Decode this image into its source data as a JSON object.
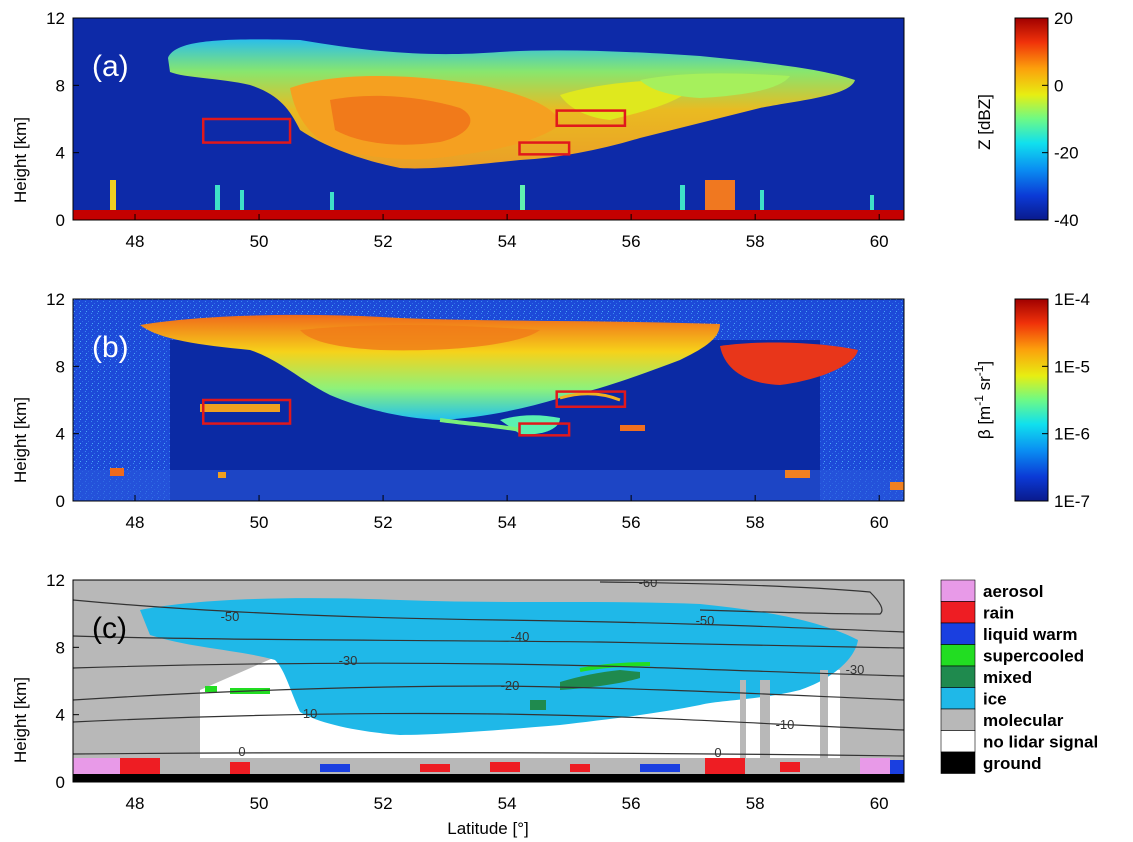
{
  "chart_data": [
    {
      "type": "heatmap",
      "panel_label": "(a)",
      "ylabel": "Height [km]",
      "xlim": [
        47,
        60.4
      ],
      "ylim": [
        0,
        12
      ],
      "xticks": [
        "48",
        "50",
        "52",
        "54",
        "56",
        "58",
        "60"
      ],
      "yticks": [
        "0",
        "4",
        "8",
        "12"
      ],
      "colorbar": {
        "label": "Z [dBZ]",
        "ticks": [
          "20",
          "0",
          "-20",
          "-40"
        ],
        "range": [
          -40,
          20
        ],
        "colormap": "jet"
      },
      "highlight_boxes": [
        {
          "lat": [
            49.1,
            50.5
          ],
          "height_km": [
            4.6,
            6.0
          ]
        },
        {
          "lat": [
            54.2,
            55.0
          ],
          "height_km": [
            3.9,
            4.6
          ]
        },
        {
          "lat": [
            54.8,
            55.9
          ],
          "height_km": [
            5.6,
            6.5
          ]
        }
      ],
      "box_color": "#e0181c"
    },
    {
      "type": "heatmap",
      "panel_label": "(b)",
      "ylabel": "Height [km]",
      "xlim": [
        47,
        60.4
      ],
      "ylim": [
        0,
        12
      ],
      "xticks": [
        "48",
        "50",
        "52",
        "54",
        "56",
        "58",
        "60"
      ],
      "yticks": [
        "0",
        "4",
        "8",
        "12"
      ],
      "colorbar": {
        "label_main": "β [m",
        "label_sup1": "-1",
        "label_mid": " sr",
        "label_sup2": "-1",
        "label_end": "]",
        "ticks": [
          "1E-4",
          "1E-5",
          "1E-6",
          "1E-7"
        ],
        "scale": "log",
        "colormap": "jet"
      },
      "highlight_boxes": [
        {
          "lat": [
            49.1,
            50.5
          ],
          "height_km": [
            4.6,
            6.0
          ]
        },
        {
          "lat": [
            54.2,
            55.0
          ],
          "height_km": [
            3.9,
            4.6
          ]
        },
        {
          "lat": [
            54.8,
            55.9
          ],
          "height_km": [
            5.6,
            6.5
          ]
        }
      ],
      "box_color": "#e0181c"
    },
    {
      "type": "heatmap",
      "panel_label": "(c)",
      "ylabel": "Height [km]",
      "xlabel": "Latitude [°]",
      "xlim": [
        47,
        60.4
      ],
      "ylim": [
        0,
        12
      ],
      "xticks": [
        "48",
        "50",
        "52",
        "54",
        "56",
        "58",
        "60"
      ],
      "yticks": [
        "0",
        "4",
        "8",
        "12"
      ],
      "legend": [
        {
          "name": "aerosol",
          "color": "#e89ae8"
        },
        {
          "name": "rain",
          "color": "#ee1d23"
        },
        {
          "name": "liquid warm",
          "color": "#1a3fe0"
        },
        {
          "name": "supercooled",
          "color": "#22dd22"
        },
        {
          "name": "mixed",
          "color": "#1f8a4e"
        },
        {
          "name": "ice",
          "color": "#1fb8e8"
        },
        {
          "name": "molecular",
          "color": "#b8b8b8"
        },
        {
          "name": "no lidar signal",
          "color": "#ffffff"
        },
        {
          "name": "ground",
          "color": "#000000"
        }
      ],
      "contour_labels": [
        "-60",
        "-50",
        "-50",
        "-40",
        "-30",
        "-30",
        "-20",
        "-10",
        "-10",
        "0",
        "0"
      ]
    }
  ]
}
